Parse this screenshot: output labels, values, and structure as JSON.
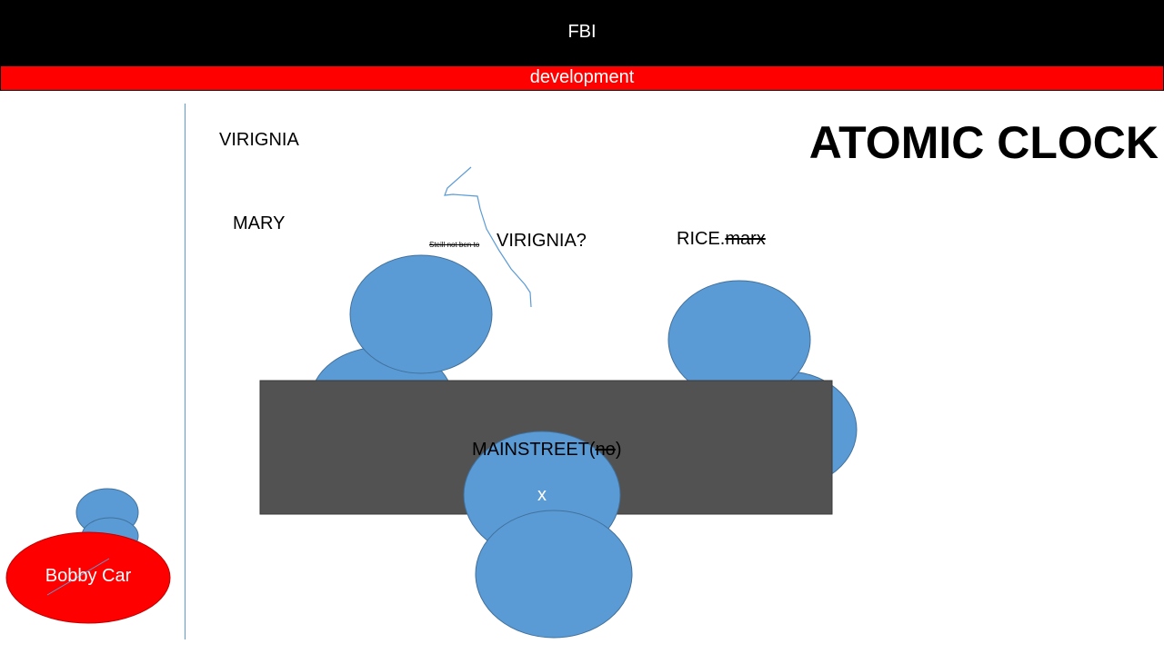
{
  "header": {
    "title": "FBI",
    "subtitle": "development"
  },
  "labels": {
    "virginia": "VIRIGNIA",
    "mary": "MARY",
    "small_note": "Steill not ben to",
    "virginia_question": "VIRIGNIA?",
    "rice": "RICE.",
    "rice_struck": "marx",
    "mainstreet": "MAINSTREET(",
    "mainstreet_struck": "no",
    "mainstreet_close": ")",
    "x_mark": "x",
    "bobby_car": "Bobby Car"
  },
  "heading": "ATOMIC CLOCK",
  "colors": {
    "header_bg": "#000000",
    "banner_bg": "#ff0000",
    "shape_blue": "#5b9bd5",
    "box_gray": "#525252",
    "bobby_red": "#ff0000"
  }
}
